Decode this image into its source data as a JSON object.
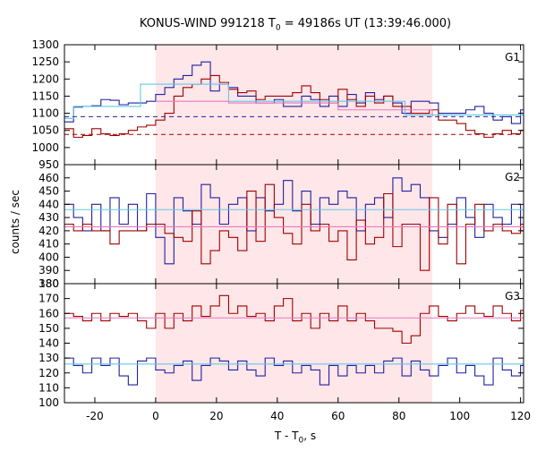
{
  "title_main": "KONUS-WIND 991218 T",
  "title_sub": "0",
  "title_rest": " = 49186s UT (13:39:46.000)",
  "ylabel": "counts / sec",
  "xlabel_main": "T - T",
  "xlabel_sub": "0",
  "xlabel_rest": ", s",
  "colors": {
    "red": "#a00000",
    "blue": "#2020a0",
    "cyan": "#60c8e8",
    "pink": "#e878c0",
    "shade": "#ffe6e8"
  },
  "chart_data": {
    "type": "line",
    "x_range": [
      -30,
      121
    ],
    "x_ticks": [
      -20,
      0,
      20,
      40,
      60,
      80,
      100,
      120
    ],
    "shaded_interval": [
      0,
      91
    ],
    "bin_edges_start": -30,
    "bin_width": 3,
    "panels": [
      {
        "label": "G1",
        "ylim": [
          950,
          1300
        ],
        "yticks": [
          950,
          1000,
          1050,
          1100,
          1150,
          1200,
          1250,
          1300
        ],
        "series": [
          {
            "color": "blue",
            "values": [
              1075,
              1118,
              1120,
              1122,
              1140,
              1138,
              1125,
              1130,
              1130,
              1135,
              1155,
              1175,
              1200,
              1210,
              1240,
              1250,
              1165,
              1185,
              1175,
              1150,
              1150,
              1130,
              1130,
              1140,
              1120,
              1120,
              1150,
              1140,
              1120,
              1150,
              1120,
              1155,
              1130,
              1160,
              1140,
              1150,
              1130,
              1100,
              1135,
              1135,
              1130,
              1100,
              1100,
              1100,
              1110,
              1120,
              1100,
              1080,
              1090,
              1070,
              1110,
              1080
            ]
          },
          {
            "color": "red",
            "values": [
              1055,
              1030,
              1035,
              1055,
              1040,
              1035,
              1040,
              1050,
              1060,
              1065,
              1080,
              1100,
              1150,
              1175,
              1185,
              1200,
              1210,
              1190,
              1170,
              1160,
              1165,
              1140,
              1150,
              1150,
              1150,
              1160,
              1180,
              1160,
              1140,
              1130,
              1170,
              1140,
              1120,
              1150,
              1130,
              1150,
              1120,
              1120,
              1100,
              1100,
              1110,
              1080,
              1080,
              1070,
              1050,
              1040,
              1030,
              1040,
              1050,
              1040,
              1050,
              1030
            ]
          },
          {
            "color": "cyan",
            "step": [
              [
                -30,
                1085
              ],
              [
                -27,
                1120
              ],
              [
                -5,
                1185
              ],
              [
                24,
                1135
              ],
              [
                82,
                1095
              ],
              [
                121,
                1095
              ]
            ]
          },
          {
            "color": "pink",
            "step": [
              [
                0,
                1135
              ],
              [
                24,
                1130
              ],
              [
                60,
                1110
              ],
              [
                91,
                1090
              ]
            ]
          }
        ],
        "bg_lines": [
          {
            "color": "blue",
            "dashed": true,
            "value": 1090
          },
          {
            "color": "red",
            "dashed": true,
            "value": 1038
          }
        ]
      },
      {
        "label": "G2",
        "ylim": [
          380,
          470
        ],
        "yticks": [
          380,
          390,
          400,
          410,
          420,
          430,
          440,
          450,
          460
        ],
        "series": [
          {
            "color": "blue",
            "values": [
              440,
              430,
              420,
              440,
              420,
              445,
              425,
              440,
              420,
              448,
              415,
              395,
              445,
              435,
              425,
              455,
              445,
              425,
              440,
              445,
              420,
              445,
              435,
              440,
              458,
              435,
              450,
              425,
              445,
              440,
              450,
              445,
              420,
              440,
              445,
              430,
              460,
              450,
              455,
              445,
              420,
              415,
              425,
              445,
              430,
              415,
              440,
              430,
              425,
              440,
              420,
              430
            ]
          },
          {
            "color": "red",
            "values": [
              425,
              420,
              425,
              420,
              420,
              410,
              420,
              420,
              420,
              425,
              425,
              418,
              415,
              412,
              435,
              395,
              405,
              420,
              415,
              405,
              450,
              412,
              455,
              430,
              418,
              410,
              440,
              420,
              425,
              412,
              420,
              398,
              428,
              410,
              415,
              448,
              408,
              425,
              425,
              390,
              445,
              410,
              440,
              395,
              425,
              440,
              420,
              425,
              420,
              418,
              425,
              428
            ]
          },
          {
            "color": "cyan",
            "flat": 436
          },
          {
            "color": "pink",
            "flat": 423
          }
        ]
      },
      {
        "label": "G3",
        "ylim": [
          100,
          180
        ],
        "yticks": [
          100,
          110,
          120,
          130,
          140,
          150,
          160,
          170,
          180
        ],
        "series": [
          {
            "color": "red",
            "values": [
              160,
              158,
              155,
              160,
              155,
              160,
              158,
              160,
              155,
              150,
              160,
              150,
              160,
              155,
              165,
              158,
              165,
              172,
              160,
              165,
              158,
              160,
              155,
              165,
              170,
              155,
              160,
              150,
              160,
              155,
              165,
              155,
              160,
              155,
              150,
              150,
              148,
              140,
              145,
              160,
              165,
              158,
              155,
              160,
              165,
              160,
              158,
              165,
              160,
              155,
              162,
              163
            ]
          },
          {
            "color": "blue",
            "values": [
              130,
              125,
              120,
              130,
              125,
              130,
              118,
              112,
              128,
              130,
              122,
              120,
              125,
              128,
              115,
              125,
              130,
              128,
              122,
              128,
              122,
              118,
              130,
              125,
              128,
              120,
              125,
              122,
              112,
              125,
              118,
              125,
              120,
              125,
              120,
              128,
              130,
              118,
              128,
              122,
              118,
              125,
              130,
              120,
              125,
              118,
              112,
              130,
              122,
              118,
              125,
              130
            ]
          },
          {
            "color": "pink",
            "flat": 157
          },
          {
            "color": "cyan",
            "flat": 126
          }
        ]
      }
    ]
  }
}
